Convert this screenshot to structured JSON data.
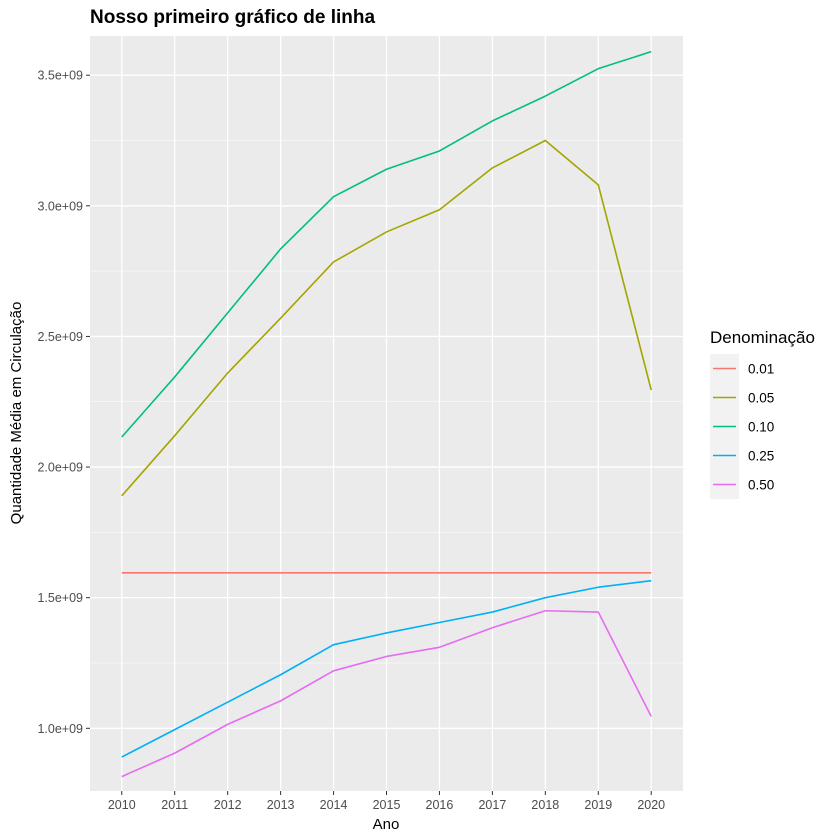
{
  "chart_data": {
    "type": "line",
    "title": "Nosso primeiro gráfico de linha",
    "xlabel": "Ano",
    "ylabel": "Quantidade Média em Circulação",
    "x": [
      2010,
      2011,
      2012,
      2013,
      2014,
      2015,
      2016,
      2017,
      2018,
      2019,
      2020
    ],
    "xlim": [
      2009.4,
      2020.6
    ],
    "ylim": [
      760000000,
      3650000000
    ],
    "y_ticks": [
      1000000000,
      1500000000,
      2000000000,
      2500000000,
      3000000000,
      3500000000
    ],
    "y_tick_labels": [
      "1.0e+09",
      "1.5e+09",
      "2.0e+09",
      "2.5e+09",
      "3.0e+09",
      "3.5e+09"
    ],
    "x_tick_labels": [
      "2010",
      "2011",
      "2012",
      "2013",
      "2014",
      "2015",
      "2016",
      "2017",
      "2018",
      "2019",
      "2020"
    ],
    "grid": true,
    "panel_background": "#ebebeb",
    "legend": {
      "title": "Denominação",
      "position": "right"
    },
    "series": [
      {
        "name": "0.01",
        "color": "#F8766D",
        "values": [
          1595000000,
          1595000000,
          1595000000,
          1595000000,
          1595000000,
          1595000000,
          1595000000,
          1595000000,
          1595000000,
          1595000000,
          1595000000
        ]
      },
      {
        "name": "0.05",
        "color": "#A3A500",
        "values": [
          1890000000,
          2120000000,
          2360000000,
          2570000000,
          2785000000,
          2900000000,
          2985000000,
          3145000000,
          3250000000,
          3080000000,
          2295000000
        ]
      },
      {
        "name": "0.10",
        "color": "#00BF7D",
        "values": [
          2115000000,
          2345000000,
          2590000000,
          2835000000,
          3035000000,
          3140000000,
          3210000000,
          3325000000,
          3420000000,
          3525000000,
          3590000000
        ]
      },
      {
        "name": "0.25",
        "color": "#00B0F6",
        "values": [
          890000000,
          995000000,
          1100000000,
          1205000000,
          1320000000,
          1365000000,
          1405000000,
          1445000000,
          1500000000,
          1540000000,
          1565000000
        ]
      },
      {
        "name": "0.50",
        "color": "#E76BF3",
        "values": [
          815000000,
          905000000,
          1015000000,
          1105000000,
          1220000000,
          1275000000,
          1310000000,
          1385000000,
          1450000000,
          1445000000,
          1045000000
        ]
      }
    ]
  }
}
